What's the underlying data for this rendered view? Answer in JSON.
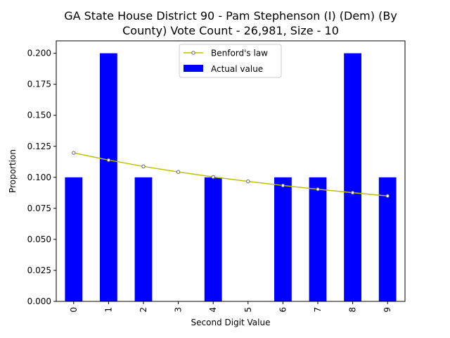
{
  "chart_data": {
    "type": "bar",
    "title_line1": "GA State House District 90 - Pam Stephenson (I) (Dem) (By",
    "title_line2": "County) Vote Count - 26,981, Size - 10",
    "xlabel": "Second Digit Value",
    "ylabel": "Proportion",
    "categories": [
      "0",
      "1",
      "2",
      "3",
      "4",
      "5",
      "6",
      "7",
      "8",
      "9"
    ],
    "ylim": [
      0,
      0.21
    ],
    "yticks": [
      "0.000",
      "0.025",
      "0.050",
      "0.075",
      "0.100",
      "0.125",
      "0.150",
      "0.175",
      "0.200"
    ],
    "series": [
      {
        "name": "Actual value",
        "kind": "bar",
        "color": "#0000ff",
        "values": [
          0.1,
          0.2,
          0.1,
          0.0,
          0.1,
          0.0,
          0.1,
          0.1,
          0.2,
          0.1
        ]
      },
      {
        "name": "Benford's law",
        "kind": "line",
        "color": "#bfbf00",
        "values": [
          0.1197,
          0.1139,
          0.1088,
          0.1043,
          0.1003,
          0.0967,
          0.0934,
          0.0904,
          0.0876,
          0.085
        ]
      }
    ],
    "legend_position": "top-center",
    "grid": false
  }
}
